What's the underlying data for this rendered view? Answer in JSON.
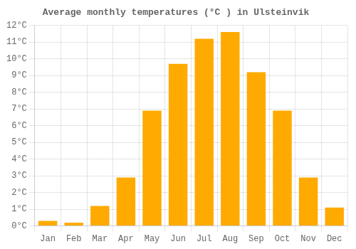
{
  "chart_data": {
    "type": "bar",
    "title": "Average monthly temperatures (°C ) in Ulsteinvik",
    "categories": [
      "Jan",
      "Feb",
      "Mar",
      "Apr",
      "May",
      "Jun",
      "Jul",
      "Aug",
      "Sep",
      "Oct",
      "Nov",
      "Dec"
    ],
    "values": [
      0.3,
      0.2,
      1.2,
      2.9,
      6.9,
      9.7,
      11.2,
      11.6,
      9.2,
      6.9,
      2.9,
      1.1
    ],
    "color": "#FFAA00",
    "ylim": [
      0,
      12
    ],
    "yticks": [
      {
        "value": 0,
        "label": "0°C"
      },
      {
        "value": 1,
        "label": "1°C"
      },
      {
        "value": 2,
        "label": "2°C"
      },
      {
        "value": 3,
        "label": "3°C"
      },
      {
        "value": 4,
        "label": "4°C"
      },
      {
        "value": 5,
        "label": "5°C"
      },
      {
        "value": 6,
        "label": "6°C"
      },
      {
        "value": 7,
        "label": "7°C"
      },
      {
        "value": 8,
        "label": "8°C"
      },
      {
        "value": 9,
        "label": "9°C"
      },
      {
        "value": 10,
        "label": "10°C"
      },
      {
        "value": 11,
        "label": "11°C"
      },
      {
        "value": 12,
        "label": "12°C"
      }
    ],
    "grid": true
  }
}
